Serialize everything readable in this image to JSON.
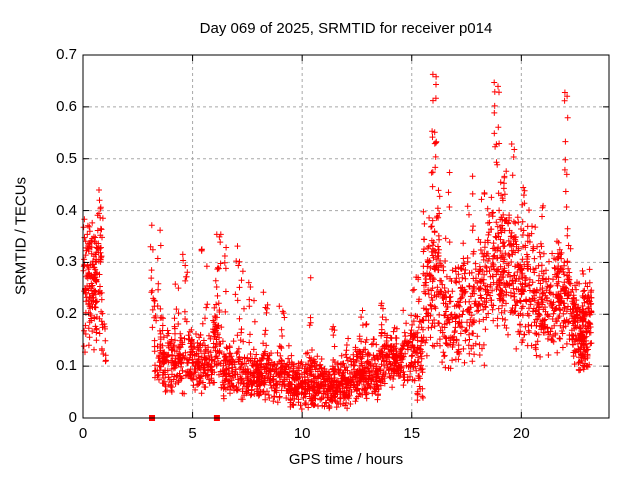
{
  "chart_data": {
    "type": "scatter",
    "title": "Day 069 of 2025, SRMTID for receiver p014",
    "xlabel": "GPS time / hours",
    "ylabel": "SRMTID / TECUs",
    "xlim": [
      0,
      24
    ],
    "ylim": [
      0,
      0.7
    ],
    "xticks": [
      0,
      5,
      10,
      15,
      20
    ],
    "xtick_labels": [
      "0",
      "5",
      "10",
      "15",
      "20"
    ],
    "yticks": [
      0,
      0.1,
      0.2,
      0.3,
      0.4,
      0.5,
      0.6,
      0.7
    ],
    "ytick_labels": [
      "0",
      "0.1",
      "0.2",
      "0.3",
      "0.4",
      "0.5",
      "0.6",
      "0.7"
    ],
    "grid": true,
    "legend": "none",
    "marker": "plus",
    "marker_color": "#ff0000",
    "grid_color": "#a8a8a8",
    "border_color": "#000000",
    "prng_seed": 69,
    "segment_format": "[x_start_hours, x_end_hours, count, y_min_TECUs, y_max_TECUs, skew_pow]",
    "segments": [
      [
        0.02,
        0.3,
        55,
        0.07,
        0.41,
        0.75
      ],
      [
        0.28,
        0.62,
        65,
        0.1,
        0.39,
        0.9
      ],
      [
        0.55,
        0.92,
        55,
        0.12,
        0.465,
        0.85
      ],
      [
        0.85,
        1.05,
        14,
        0.09,
        0.24,
        1
      ],
      [
        3.08,
        3.3,
        14,
        0.05,
        0.395,
        1
      ],
      [
        3.25,
        3.65,
        40,
        0.06,
        0.21,
        1.1
      ],
      [
        3.6,
        5.0,
        165,
        0.045,
        0.19,
        1.15
      ],
      [
        5.0,
        5.9,
        115,
        0.045,
        0.175,
        1.1
      ],
      [
        5.9,
        6.35,
        60,
        0.05,
        0.24,
        1.1
      ],
      [
        6.35,
        7.9,
        185,
        0.03,
        0.155,
        1.15
      ],
      [
        7.9,
        9.4,
        190,
        0.03,
        0.145,
        1.1
      ],
      [
        9.4,
        10.6,
        190,
        0.015,
        0.125,
        1.1
      ],
      [
        10.6,
        12.2,
        240,
        0.015,
        0.125,
        1.1
      ],
      [
        12.2,
        13.5,
        190,
        0.03,
        0.145,
        1.1
      ],
      [
        13.5,
        14.6,
        150,
        0.055,
        0.175,
        1
      ],
      [
        14.6,
        15.5,
        110,
        0.05,
        0.21,
        1
      ],
      [
        15.5,
        16.3,
        120,
        0.1,
        0.42,
        0.95
      ],
      [
        16.3,
        17.2,
        110,
        0.08,
        0.32,
        1.05
      ],
      [
        17.2,
        18.45,
        145,
        0.1,
        0.37,
        1.05
      ],
      [
        18.45,
        19.45,
        160,
        0.14,
        0.46,
        0.95
      ],
      [
        19.45,
        20.4,
        150,
        0.12,
        0.42,
        1.05
      ],
      [
        20.4,
        21.6,
        150,
        0.1,
        0.34,
        1.05
      ],
      [
        21.6,
        22.3,
        115,
        0.11,
        0.37,
        1
      ],
      [
        22.3,
        23.2,
        170,
        0.09,
        0.29,
        1.15
      ]
    ],
    "spike_format": "[x_start_hours, x_end_hours, count, y_min_TECUs, y_max_TECUs]",
    "spikes": [
      [
        3.4,
        3.55,
        7,
        0.2,
        0.395
      ],
      [
        4.15,
        4.45,
        7,
        0.16,
        0.27
      ],
      [
        4.55,
        4.78,
        9,
        0.18,
        0.335
      ],
      [
        5.4,
        5.7,
        8,
        0.18,
        0.33
      ],
      [
        6.05,
        6.3,
        11,
        0.22,
        0.385
      ],
      [
        6.3,
        6.6,
        6,
        0.2,
        0.33
      ],
      [
        6.95,
        7.35,
        14,
        0.15,
        0.335
      ],
      [
        7.55,
        7.85,
        8,
        0.14,
        0.285
      ],
      [
        8.15,
        8.45,
        9,
        0.13,
        0.245
      ],
      [
        8.95,
        9.25,
        7,
        0.13,
        0.22
      ],
      [
        10.25,
        10.45,
        6,
        0.12,
        0.28
      ],
      [
        11.35,
        11.5,
        5,
        0.12,
        0.19
      ],
      [
        11.95,
        12.1,
        4,
        0.12,
        0.165
      ],
      [
        12.55,
        12.95,
        10,
        0.13,
        0.225
      ],
      [
        13.15,
        13.3,
        4,
        0.13,
        0.185
      ],
      [
        13.55,
        13.85,
        6,
        0.16,
        0.225
      ],
      [
        14.95,
        15.35,
        8,
        0.19,
        0.3
      ],
      [
        15.2,
        15.55,
        8,
        0.025,
        0.06
      ],
      [
        15.9,
        16.12,
        16,
        0.42,
        0.665
      ],
      [
        16.15,
        16.3,
        4,
        0.38,
        0.46
      ],
      [
        16.55,
        16.8,
        5,
        0.33,
        0.48
      ],
      [
        17.55,
        17.8,
        6,
        0.36,
        0.47
      ],
      [
        18.15,
        18.45,
        8,
        0.3,
        0.45
      ],
      [
        18.75,
        19.0,
        13,
        0.47,
        0.665
      ],
      [
        19.05,
        19.35,
        6,
        0.44,
        0.52
      ],
      [
        19.55,
        19.75,
        4,
        0.42,
        0.55
      ],
      [
        20.05,
        20.2,
        3,
        0.4,
        0.46
      ],
      [
        20.45,
        20.65,
        5,
        0.3,
        0.37
      ],
      [
        20.85,
        21.0,
        4,
        0.32,
        0.41
      ],
      [
        21.92,
        22.12,
        10,
        0.4,
        0.635
      ],
      [
        22.6,
        23.05,
        40,
        0.09,
        0.16
      ],
      [
        23.0,
        23.2,
        6,
        0.15,
        0.26
      ]
    ],
    "square_markers": {
      "color": "#ff0000",
      "value_TECUs": 0,
      "x_hours": [
        3.15,
        6.11
      ]
    }
  }
}
